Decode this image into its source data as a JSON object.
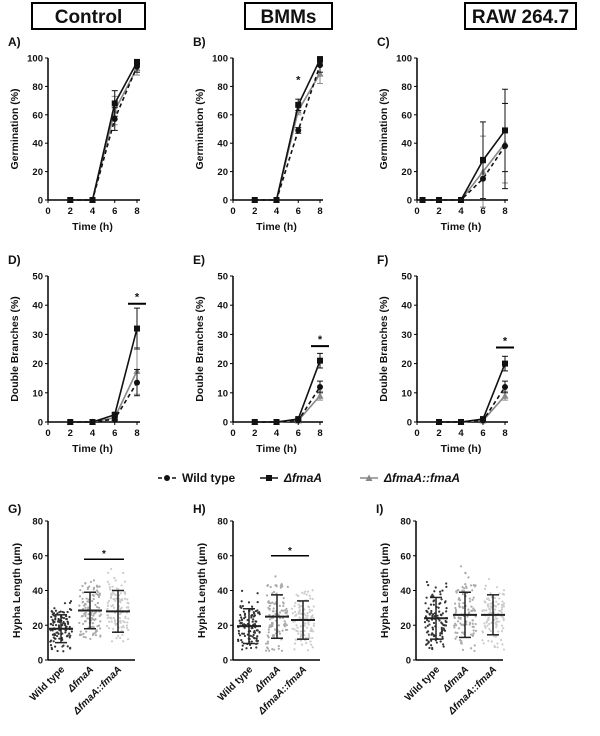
{
  "column_titles": [
    "Control",
    "BMMs",
    "RAW 264.7"
  ],
  "legend": {
    "entries": [
      "Wild type",
      "ΔfmaA",
      "ΔfmaA::fmaA"
    ],
    "placement": "between-rows",
    "colors": [
      "#111111",
      "#111111",
      "#888888"
    ]
  },
  "chart_data": [
    {
      "panel": "A)",
      "type": "line",
      "xlabel": "Time (h)",
      "ylabel": "Germination (%)",
      "xlim": [
        0,
        8
      ],
      "ylim": [
        0,
        100
      ],
      "xticks": [
        0,
        2,
        4,
        6,
        8
      ],
      "yticks": [
        0,
        20,
        40,
        60,
        80,
        100
      ],
      "x": [
        2,
        4,
        6,
        8
      ],
      "series": [
        {
          "name": "Wild type",
          "values": [
            0,
            0,
            57,
            94
          ],
          "err": [
            0,
            0,
            8,
            4
          ]
        },
        {
          "name": "ΔfmaA",
          "values": [
            0,
            0,
            68,
            97
          ],
          "err": [
            0,
            0,
            9,
            2
          ]
        },
        {
          "name": "ΔfmaA::fmaA",
          "values": [
            0,
            0,
            63,
            93
          ],
          "err": [
            0,
            0,
            10,
            5
          ]
        }
      ],
      "significance": []
    },
    {
      "panel": "B)",
      "type": "line",
      "xlabel": "Time (h)",
      "ylabel": "Germination (%)",
      "xlim": [
        0,
        8
      ],
      "ylim": [
        0,
        100
      ],
      "xticks": [
        0,
        2,
        4,
        6,
        8
      ],
      "yticks": [
        0,
        20,
        40,
        60,
        80,
        100
      ],
      "x": [
        2,
        4,
        6,
        8
      ],
      "series": [
        {
          "name": "Wild type",
          "values": [
            0,
            0,
            49,
            95
          ],
          "err": [
            0,
            0,
            2,
            5
          ]
        },
        {
          "name": "ΔfmaA",
          "values": [
            0,
            0,
            67,
            99
          ],
          "err": [
            0,
            0,
            4,
            2
          ]
        },
        {
          "name": "ΔfmaA::fmaA",
          "values": [
            0,
            0,
            63,
            89
          ],
          "err": [
            0,
            0,
            3,
            7
          ]
        }
      ],
      "significance": [
        {
          "x": 6,
          "label": "*"
        }
      ]
    },
    {
      "panel": "C)",
      "type": "line",
      "xlabel": "Time (h)",
      "ylabel": "Germination (%)",
      "xlim": [
        0,
        8
      ],
      "ylim": [
        0,
        100
      ],
      "xticks": [
        0,
        2,
        4,
        6,
        8
      ],
      "yticks": [
        0,
        20,
        40,
        60,
        80,
        100
      ],
      "x": [
        0.5,
        2,
        4,
        6,
        8
      ],
      "series": [
        {
          "name": "Wild type",
          "values": [
            0,
            0,
            0,
            15,
            38
          ],
          "err": [
            0,
            0,
            0,
            15,
            30
          ]
        },
        {
          "name": "ΔfmaA",
          "values": [
            0,
            0,
            0,
            28,
            49
          ],
          "err": [
            0,
            0,
            0,
            27,
            29
          ]
        },
        {
          "name": "ΔfmaA::fmaA",
          "values": [
            0,
            0,
            0,
            20,
            40
          ],
          "err": [
            0,
            0,
            0,
            25,
            28
          ]
        }
      ],
      "significance": []
    },
    {
      "panel": "D)",
      "type": "line",
      "xlabel": "Time (h)",
      "ylabel": "Double Branches (%)",
      "xlim": [
        0,
        8
      ],
      "ylim": [
        0,
        50
      ],
      "xticks": [
        0,
        2,
        4,
        6,
        8
      ],
      "yticks": [
        0,
        10,
        20,
        30,
        40,
        50
      ],
      "x": [
        2,
        4,
        6,
        8
      ],
      "series": [
        {
          "name": "Wild type",
          "values": [
            0,
            0,
            1,
            13.5
          ],
          "err": [
            0,
            0,
            0.5,
            4.5
          ]
        },
        {
          "name": "ΔfmaA",
          "values": [
            0,
            0,
            2.5,
            32
          ],
          "err": [
            0,
            0,
            0.5,
            7
          ]
        },
        {
          "name": "ΔfmaA::fmaA",
          "values": [
            0,
            0,
            1.5,
            17.5
          ],
          "err": [
            0,
            0,
            0.5,
            8
          ]
        }
      ],
      "significance": [
        {
          "x": 8,
          "label": "*",
          "y": 40.5
        }
      ]
    },
    {
      "panel": "E)",
      "type": "line",
      "xlabel": "Time (h)",
      "ylabel": "Double Branches (%)",
      "xlim": [
        0,
        8
      ],
      "ylim": [
        0,
        50
      ],
      "xticks": [
        0,
        2,
        4,
        6,
        8
      ],
      "yticks": [
        0,
        10,
        20,
        30,
        40,
        50
      ],
      "x": [
        2,
        4,
        6,
        8
      ],
      "series": [
        {
          "name": "Wild type",
          "values": [
            0,
            0,
            0.5,
            12
          ],
          "err": [
            0,
            0,
            0.3,
            2
          ]
        },
        {
          "name": "ΔfmaA",
          "values": [
            0,
            0,
            1,
            21
          ],
          "err": [
            0,
            0,
            0.3,
            2.5
          ]
        },
        {
          "name": "ΔfmaA::fmaA",
          "values": [
            0,
            0,
            0.5,
            9
          ],
          "err": [
            0,
            0,
            0.3,
            1.5
          ]
        }
      ],
      "significance": [
        {
          "x": 8,
          "label": "*",
          "y": 26
        }
      ]
    },
    {
      "panel": "F)",
      "type": "line",
      "xlabel": "Time (h)",
      "ylabel": "Double Branches (%)",
      "xlim": [
        0,
        8
      ],
      "ylim": [
        0,
        50
      ],
      "xticks": [
        0,
        2,
        4,
        6,
        8
      ],
      "yticks": [
        0,
        10,
        20,
        30,
        40,
        50
      ],
      "x": [
        2,
        4,
        6,
        8
      ],
      "series": [
        {
          "name": "Wild type",
          "values": [
            0,
            0,
            0.5,
            12
          ],
          "err": [
            0,
            0,
            0.3,
            2
          ]
        },
        {
          "name": "ΔfmaA",
          "values": [
            0,
            0,
            1,
            20
          ],
          "err": [
            0,
            0,
            0.3,
            2.5
          ]
        },
        {
          "name": "ΔfmaA::fmaA",
          "values": [
            0,
            0,
            0.5,
            9
          ],
          "err": [
            0,
            0,
            0.3,
            1.5
          ]
        }
      ],
      "significance": [
        {
          "x": 8,
          "label": "*",
          "y": 25.5
        }
      ]
    },
    {
      "panel": "G)",
      "type": "scatter",
      "ylabel": "Hypha Length (µm)",
      "ylim": [
        0,
        80
      ],
      "yticks": [
        0,
        20,
        40,
        60,
        80
      ],
      "categories": [
        "Wild type",
        "ΔfmaA",
        "ΔfmaA::fmaA"
      ],
      "mean": [
        18,
        28.5,
        28
      ],
      "sd": [
        8,
        10.5,
        12
      ],
      "range": [
        [
          5,
          37
        ],
        [
          12,
          54
        ],
        [
          4,
          56
        ]
      ],
      "significance": [
        {
          "from": 1,
          "to": 2,
          "label": "*",
          "y": 58
        }
      ]
    },
    {
      "panel": "H)",
      "type": "scatter",
      "ylabel": "Hypha Length (µm)",
      "ylim": [
        0,
        80
      ],
      "yticks": [
        0,
        20,
        40,
        60,
        80
      ],
      "categories": [
        "Wild type",
        "ΔfmaA",
        "ΔfmaA::fmaA"
      ],
      "mean": [
        19.5,
        25,
        23
      ],
      "sd": [
        10,
        12.5,
        11
      ],
      "range": [
        [
          6,
          51
        ],
        [
          5,
          58
        ],
        [
          5,
          50
        ]
      ],
      "significance": [
        {
          "from": 1,
          "to": 2,
          "label": "*",
          "y": 60
        }
      ]
    },
    {
      "panel": "I)",
      "type": "scatter",
      "ylabel": "Hypha Length (µm)",
      "ylim": [
        0,
        80
      ],
      "yticks": [
        0,
        20,
        40,
        60,
        80
      ],
      "categories": [
        "Wild type",
        "ΔfmaA",
        "ΔfmaA::fmaA"
      ],
      "mean": [
        24,
        26,
        26
      ],
      "sd": [
        12,
        13,
        11.5
      ],
      "range": [
        [
          6,
          53
        ],
        [
          5,
          57
        ],
        [
          6,
          55
        ]
      ],
      "significance": []
    }
  ]
}
